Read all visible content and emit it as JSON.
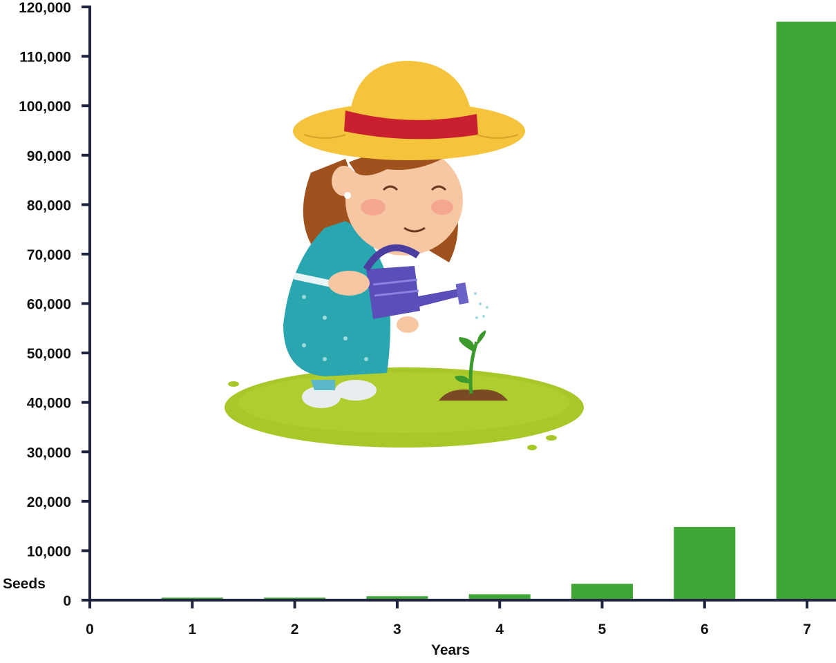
{
  "chart_data": {
    "type": "bar",
    "x_tick_labels": [
      "0",
      "1",
      "2",
      "3",
      "4",
      "5",
      "6",
      "7"
    ],
    "categories": [
      "1",
      "2",
      "3",
      "4",
      "5",
      "6",
      "7"
    ],
    "values": [
      500,
      500,
      800,
      1200,
      3300,
      14800,
      117000
    ],
    "xlabel": "Years",
    "ylabel": "Seeds",
    "ylim": [
      0,
      120000
    ],
    "y_ticks": [
      0,
      10000,
      20000,
      30000,
      40000,
      50000,
      60000,
      70000,
      80000,
      90000,
      100000,
      110000,
      120000
    ],
    "y_tick_labels": [
      "0",
      "10,000",
      "20,000",
      "30,000",
      "40,000",
      "50,000",
      "60,000",
      "70,000",
      "80,000",
      "90,000",
      "100,000",
      "110,000",
      "120,000"
    ],
    "grid": false,
    "legend": "none",
    "colors": {
      "bar": "#3fa535",
      "axis": "#1e2440",
      "text": "#111111"
    }
  },
  "illustration": {
    "name": "girl-watering-sapling",
    "colors": {
      "hat": "#f5c43c",
      "hat_band": "#c8202f",
      "dress": "#2aa6b0",
      "can": "#5a4fb8",
      "grass": "#a8c82a",
      "plant": "#3c9a2c",
      "hair": "#a0521e"
    }
  }
}
